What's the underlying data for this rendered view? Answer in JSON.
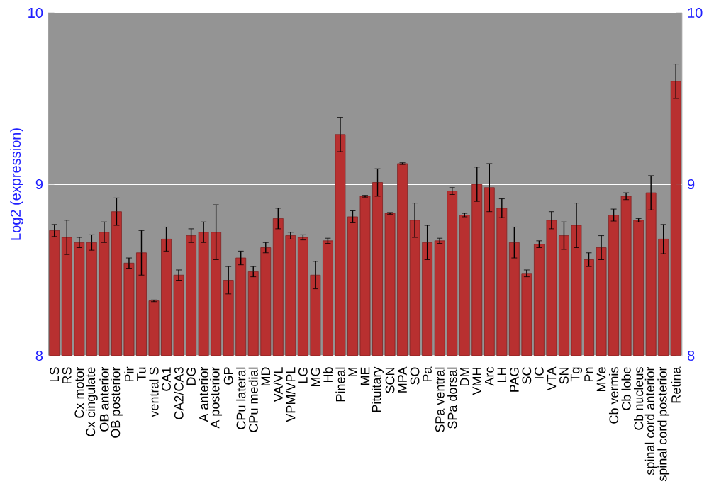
{
  "chart_data": {
    "type": "bar",
    "ylabel": "Log2 (expression)",
    "categories": [
      "LS",
      "RS",
      "Cx motor",
      "Cx cingulate",
      "OB anterior",
      "OB posterior",
      "Pir",
      "Tu",
      "ventral S",
      "CA1",
      "CA2/CA3",
      "DG",
      "A anterior",
      "A posterior",
      "GP",
      "CPu lateral",
      "CPu medial",
      "MD",
      "VA/VL",
      "VPM/VPL",
      "LG",
      "MG",
      "Hb",
      "Pineal",
      "M",
      "ME",
      "Pituitary",
      "SCN",
      "MPA",
      "SO",
      "Pa",
      "SPa ventral",
      "SPa dorsal",
      "DM",
      "VMH",
      "Arc",
      "LH",
      "PAG",
      "SC",
      "IC",
      "VTA",
      "SN",
      "Tg",
      "Pn",
      "MVe",
      "Cb vermis",
      "Cb lobe",
      "Cb nucleus",
      "spinal cord anterior",
      "spinal cord posterior",
      "Retina"
    ],
    "values": [
      8.73,
      8.69,
      8.66,
      8.66,
      8.72,
      8.84,
      8.54,
      8.6,
      8.32,
      8.68,
      8.47,
      8.7,
      8.72,
      8.72,
      8.44,
      8.57,
      8.49,
      8.63,
      8.8,
      8.7,
      8.69,
      8.47,
      8.67,
      9.29,
      8.81,
      8.93,
      9.01,
      8.83,
      9.12,
      8.79,
      8.66,
      8.67,
      8.96,
      8.82,
      9.0,
      8.98,
      8.86,
      8.66,
      8.48,
      8.65,
      8.79,
      8.7,
      8.76,
      8.56,
      8.63,
      8.82,
      8.93,
      8.79,
      8.95,
      8.68,
      9.6
    ],
    "errors": [
      0.035,
      0.1,
      0.03,
      0.045,
      0.06,
      0.08,
      0.03,
      0.13,
      0.005,
      0.07,
      0.03,
      0.04,
      0.06,
      0.16,
      0.08,
      0.04,
      0.03,
      0.03,
      0.06,
      0.02,
      0.015,
      0.08,
      0.015,
      0.1,
      0.035,
      0.005,
      0.08,
      0.005,
      0.005,
      0.1,
      0.1,
      0.015,
      0.02,
      0.01,
      0.1,
      0.14,
      0.055,
      0.09,
      0.02,
      0.02,
      0.05,
      0.08,
      0.13,
      0.04,
      0.07,
      0.035,
      0.02,
      0.01,
      0.1,
      0.085,
      0.1
    ],
    "color": "#b83030",
    "ylim": [
      8,
      10
    ],
    "yticks": [
      8,
      9,
      10
    ],
    "y2lim": [
      8,
      10
    ],
    "y2ticks": [
      8,
      9,
      10
    ],
    "grid": "y"
  }
}
